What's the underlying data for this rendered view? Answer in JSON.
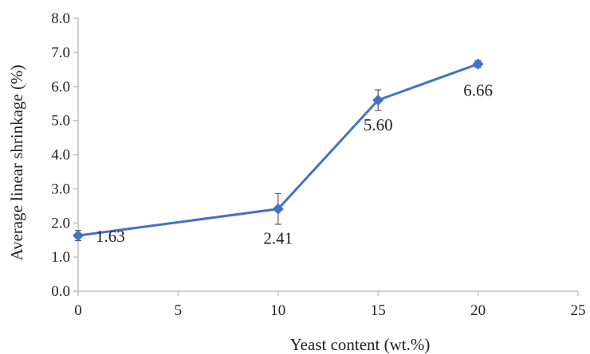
{
  "chart_data": {
    "type": "line",
    "title": "",
    "xlabel": "Yeast content (wt.%)",
    "ylabel": "Average linear shrinkage (%)",
    "xlim": [
      0,
      25
    ],
    "ylim": [
      0.0,
      8.0
    ],
    "x_ticks": [
      "0",
      "5",
      "10",
      "15",
      "20",
      "25"
    ],
    "y_ticks": [
      "0.0",
      "1.0",
      "2.0",
      "3.0",
      "4.0",
      "5.0",
      "6.0",
      "7.0",
      "8.0"
    ],
    "grid": false,
    "legend": "none",
    "series_color": "#4472C4",
    "marker": "diamond",
    "series": [
      {
        "x": [
          0,
          10,
          15,
          20
        ],
        "y": [
          1.63,
          2.41,
          5.6,
          6.66
        ],
        "error": [
          0.15,
          0.45,
          0.3,
          0.1
        ],
        "labels": [
          "1.63",
          "2.41",
          "5.60",
          "6.66"
        ]
      }
    ]
  }
}
